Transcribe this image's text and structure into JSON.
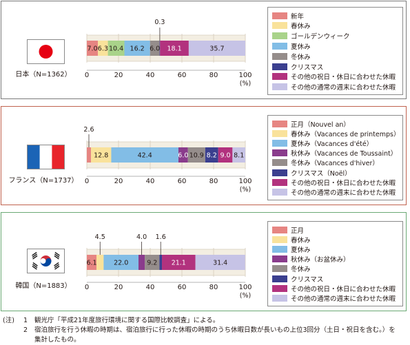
{
  "axis": {
    "ticks": [
      0,
      20,
      40,
      60,
      80,
      100
    ],
    "unit": "(%)"
  },
  "chart_data": [
    {
      "type": "bar",
      "country": "日本（N=1362）",
      "xlim": [
        0,
        100
      ],
      "series": [
        {
          "name": "新年",
          "value": 7.0,
          "label": "7.0",
          "color": "#e68582"
        },
        {
          "name": "春休み",
          "value": 6.3,
          "label": "6.3",
          "color": "#f9e29b"
        },
        {
          "name": "ゴールデンウィーク",
          "value": 10.4,
          "label": "10.4",
          "color": "#a9d38a"
        },
        {
          "name": "夏休み",
          "value": 16.2,
          "label": "16.2",
          "color": "#82bde6"
        },
        {
          "name": "冬休み",
          "value": 6.0,
          "label": "6.0",
          "color": "#958d8b"
        },
        {
          "name": "クリスマス",
          "value": 0.3,
          "label": "0.3",
          "color": "#3b3f8f"
        },
        {
          "name": "その他の祝日・休日に合わせた休暇",
          "value": 18.1,
          "label": "18.1",
          "color": "#b2327e"
        },
        {
          "name": "その他の通常の週末に合わせた休暇",
          "value": 35.7,
          "label": "35.7",
          "color": "#c6c3e6"
        }
      ]
    },
    {
      "type": "bar",
      "country": "フランス（N=1737）",
      "xlim": [
        0,
        100
      ],
      "series": [
        {
          "name": "正月（Nouvel an）",
          "value": 2.6,
          "label": "2.6",
          "color": "#e68582"
        },
        {
          "name": "春休み（Vacances de printemps）",
          "value": 12.8,
          "label": "12.8",
          "color": "#f9e29b"
        },
        {
          "name": "夏休み（Vacances d'été）",
          "value": 42.4,
          "label": "42.4",
          "color": "#82bde6"
        },
        {
          "name": "秋休み（Vacances de Toussaint）",
          "value": 6.0,
          "label": "6.0",
          "color": "#8a3c8c"
        },
        {
          "name": "冬休み（Vacances d'hiver）",
          "value": 10.9,
          "label": "10.9",
          "color": "#958d8b"
        },
        {
          "name": "クリスマス（Noël）",
          "value": 8.2,
          "label": "8.2",
          "color": "#3b3f8f"
        },
        {
          "name": "その他の祝日・休日に合わせた休暇",
          "value": 9.0,
          "label": "9.0",
          "color": "#b2327e"
        },
        {
          "name": "その他の通常の週末に合わせた休暇",
          "value": 8.1,
          "label": "8.1",
          "color": "#c6c3e6"
        }
      ]
    },
    {
      "type": "bar",
      "country": "韓国（N=1883）",
      "xlim": [
        0,
        100
      ],
      "series": [
        {
          "name": "正月",
          "value": 6.1,
          "label": "6.1",
          "color": "#e68582"
        },
        {
          "name": "春休み",
          "value": 4.5,
          "label": "4.5",
          "color": "#f9e29b"
        },
        {
          "name": "夏休み",
          "value": 22.0,
          "label": "22.0",
          "color": "#82bde6"
        },
        {
          "name": "秋休み（お盆休み）",
          "value": 4.0,
          "label": "4.0",
          "color": "#8a3c8c"
        },
        {
          "name": "冬休み",
          "value": 9.2,
          "label": "9.2",
          "color": "#958d8b"
        },
        {
          "name": "クリスマス",
          "value": 1.6,
          "label": "1.6",
          "color": "#3b3f8f"
        },
        {
          "name": "その他の祝日・休日に合わせた休暇",
          "value": 21.1,
          "label": "21.1",
          "color": "#b2327e"
        },
        {
          "name": "その他の通常の週末に合わせた休暇",
          "value": 31.4,
          "label": "31.4",
          "color": "#c6c3e6"
        }
      ]
    }
  ],
  "notes": {
    "head": "(注)",
    "items": [
      {
        "num": "1",
        "text": "観光庁「平成21年度旅行環境に関する国際比較調査」による。"
      },
      {
        "num": "2",
        "text": "宿泊旅行を行う休暇の時期は、宿泊旅行に行った休暇の時期のうち休暇日数が長いもの上位3回分（土日・祝日を含む。）を"
      },
      {
        "num": "",
        "text": "集計したもの。"
      }
    ]
  }
}
